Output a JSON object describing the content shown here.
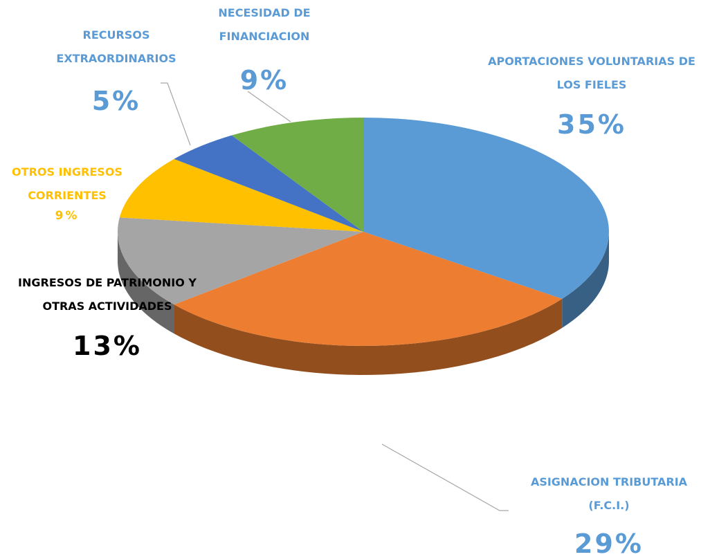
{
  "chart_data": {
    "type": "pie",
    "categories": [
      "APORTACIONES VOLUNTARIAS DE LOS FIELES",
      "ASIGNACION TRIBUTARIA (F.C.I.)",
      "INGRESOS DE PATRIMONIO Y OTRAS ACTIVIDADES",
      "OTROS INGRESOS CORRIENTES",
      "RECURSOS EXTRAORDINARIOS",
      "NECESIDAD DE FINANCIACION"
    ],
    "values": [
      35,
      29,
      13,
      9,
      5,
      9
    ],
    "value_labels": [
      "35%",
      "29%",
      "13%",
      "9%",
      "5%",
      "9%"
    ],
    "colors": [
      "#5b9bd5",
      "#ed7d31",
      "#a5a5a5",
      "#ffc000",
      "#4472c4",
      "#70ad47"
    ],
    "label_colors": [
      "#5b9bd5",
      "#5b9bd5",
      "#000000",
      "#ffc000",
      "#5b9bd5",
      "#5b9bd5"
    ]
  }
}
